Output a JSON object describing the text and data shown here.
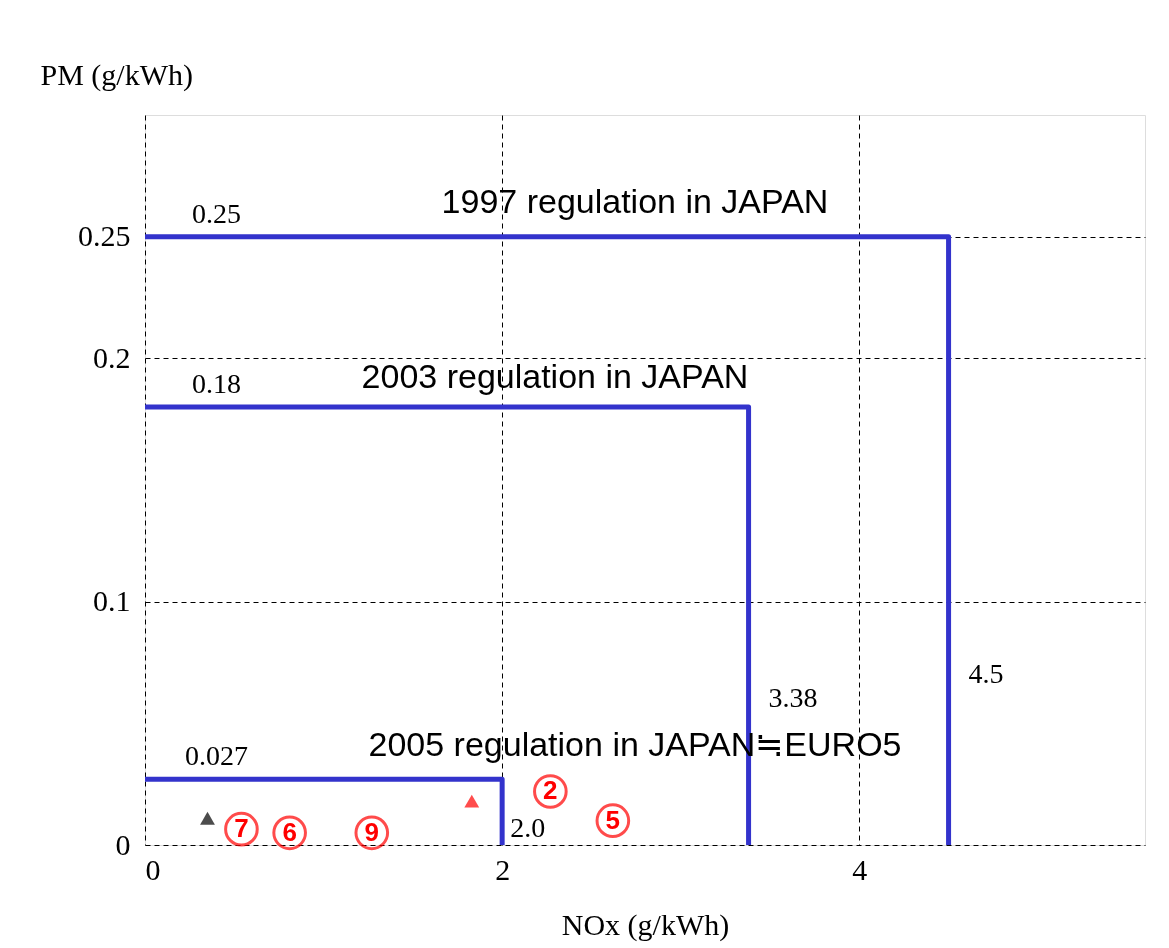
{
  "chart_data": {
    "type": "line",
    "xlabel": "NOx (g/kWh)",
    "ylabel": "PM (g/kWh)",
    "xlim": [
      0,
      5.6
    ],
    "ylim": [
      0,
      0.3
    ],
    "xticks": [
      0,
      2,
      4
    ],
    "yticks": [
      0,
      0.1,
      0.2,
      0.25
    ],
    "grid": true,
    "line_style": "solid",
    "marker": "none",
    "series": [
      {
        "color": "#3333cc",
        "x": [
          0,
          4.5,
          4.5
        ],
        "values": [
          0.25,
          0.25,
          0
        ]
      },
      {
        "color": "#3333cc",
        "x": [
          0,
          3.38,
          3.38
        ],
        "values": [
          0.18,
          0.18,
          0
        ]
      },
      {
        "color": "#3333cc",
        "x": [
          0,
          2.0,
          2.0
        ],
        "values": [
          0.027,
          0.027,
          0
        ]
      },
      {
        "type": "scatter",
        "marker": "circle",
        "color": "#ff0000",
        "x": [
          0.54,
          0.81,
          1.27,
          2.27,
          2.62
        ],
        "values": [
          0.0065,
          0.005,
          0.005,
          0.022,
          0.01
        ]
      },
      {
        "type": "scatter",
        "marker": "triangle",
        "color": "#000000",
        "x": [
          0.35
        ],
        "values": [
          0.011
        ]
      },
      {
        "type": "scatter",
        "marker": "triangle",
        "color": "#ff0000",
        "x": [
          1.83
        ],
        "values": [
          0.018
        ]
      }
    ],
    "annotations": [
      {
        "text": "0.25",
        "x": 0.4,
        "y": 0.25
      },
      {
        "text": "0.18",
        "x": 0.4,
        "y": 0.18
      },
      {
        "text": "0.027",
        "x": 0.4,
        "y": 0.027
      },
      {
        "text": "2.0",
        "x": 2.0,
        "y": 0
      },
      {
        "text": "3.38",
        "x": 3.38,
        "y": 0.06
      },
      {
        "text": "4.5",
        "x": 4.5,
        "y": 0.07
      },
      "1997 regulation in JAPAN",
      "2003 regulation in JAPAN",
      "2005 regulation in JAPAN≒EURO5",
      {
        "text": "7",
        "x": 0.54,
        "y": 0.0065
      },
      {
        "text": "6",
        "x": 0.81,
        "y": 0.005
      },
      {
        "text": "9",
        "x": 1.27,
        "y": 0.005
      },
      {
        "text": "2",
        "x": 2.27,
        "y": 0.022
      },
      {
        "text": "5",
        "x": 2.62,
        "y": 0.01
      }
    ]
  }
}
